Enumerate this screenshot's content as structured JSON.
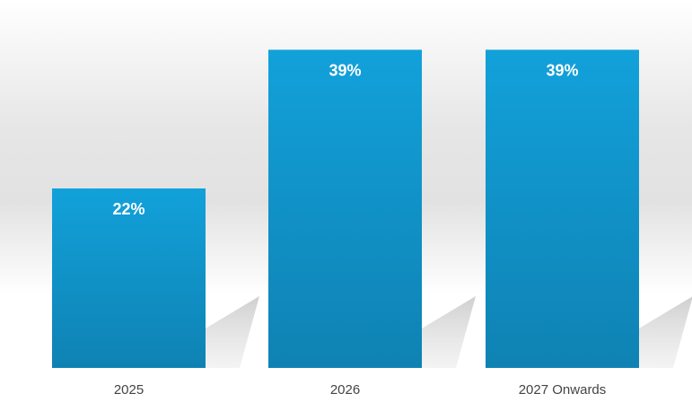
{
  "chart_data": {
    "type": "bar",
    "categories": [
      "2025",
      "2026",
      "2027 Onwards"
    ],
    "values": [
      22,
      39,
      39
    ],
    "value_labels": [
      "22%",
      "39%",
      "39%"
    ],
    "ylim": [
      0,
      44
    ],
    "grid": false,
    "legend": "none",
    "colors": {
      "bar_top": "#12a1da",
      "bar_bottom": "#0f82b3",
      "tick_text": "#444444",
      "label_text": "#ffffff"
    }
  }
}
